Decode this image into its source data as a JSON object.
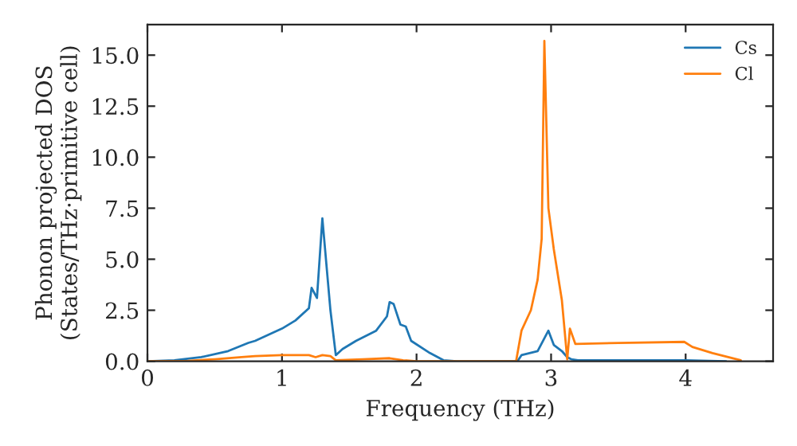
{
  "chart_data": {
    "type": "line",
    "xlabel": "Frequency (THz)",
    "ylabel": "Phonon projected DOS\n(States/THz·primitive cell)",
    "xlim": [
      0,
      4.65
    ],
    "ylim": [
      0,
      16.5
    ],
    "xticks": [
      0,
      1,
      2,
      3,
      4
    ],
    "yticks": [
      {
        "value": 0,
        "label": "0.0"
      },
      {
        "value": 2.5,
        "label": "2.5"
      },
      {
        "value": 5,
        "label": "5.0"
      },
      {
        "value": 7.5,
        "label": "7.5"
      },
      {
        "value": 10,
        "label": "10.0"
      },
      {
        "value": 12.5,
        "label": "12.5"
      },
      {
        "value": 15,
        "label": "15.0"
      }
    ],
    "legend": "top right",
    "grid": false,
    "series": [
      {
        "name": "Cs",
        "color": "#1f77b4",
        "x": [
          0,
          0.2,
          0.4,
          0.6,
          0.75,
          0.8,
          1.0,
          1.1,
          1.2,
          1.22,
          1.26,
          1.3,
          1.36,
          1.4,
          1.45,
          1.55,
          1.7,
          1.78,
          1.8,
          1.83,
          1.88,
          1.92,
          1.96,
          2.1,
          2.2,
          2.3,
          2.75,
          2.78,
          2.9,
          2.98,
          3.02,
          3.08,
          3.12,
          3.15,
          3.2,
          4.0,
          4.3
        ],
        "values": [
          0,
          0.05,
          0.2,
          0.5,
          0.9,
          1.0,
          1.6,
          2.0,
          2.6,
          3.6,
          3.1,
          7.0,
          2.5,
          0.3,
          0.6,
          1.0,
          1.5,
          2.2,
          2.9,
          2.8,
          1.8,
          1.7,
          1.0,
          0.4,
          0.05,
          0,
          0,
          0.3,
          0.5,
          1.5,
          0.8,
          0.5,
          0.2,
          0.1,
          0.05,
          0.05,
          0
        ]
      },
      {
        "name": "Cl",
        "color": "#ff7f0e",
        "x": [
          0,
          0.3,
          0.5,
          0.7,
          0.8,
          1.0,
          1.2,
          1.25,
          1.3,
          1.36,
          1.4,
          1.6,
          1.8,
          1.9,
          2.0,
          2.74,
          2.78,
          2.85,
          2.9,
          2.93,
          2.95,
          2.98,
          3.02,
          3.08,
          3.12,
          3.14,
          3.18,
          3.5,
          3.99,
          4.05,
          4.2,
          4.41
        ],
        "values": [
          0,
          0.02,
          0.1,
          0.2,
          0.25,
          0.3,
          0.3,
          0.2,
          0.3,
          0.25,
          0.05,
          0.1,
          0.15,
          0.05,
          0,
          0,
          1.5,
          2.5,
          4.0,
          6.0,
          15.7,
          7.5,
          5.5,
          3.0,
          0.1,
          1.6,
          0.85,
          0.9,
          0.95,
          0.7,
          0.4,
          0.05
        ]
      }
    ]
  }
}
